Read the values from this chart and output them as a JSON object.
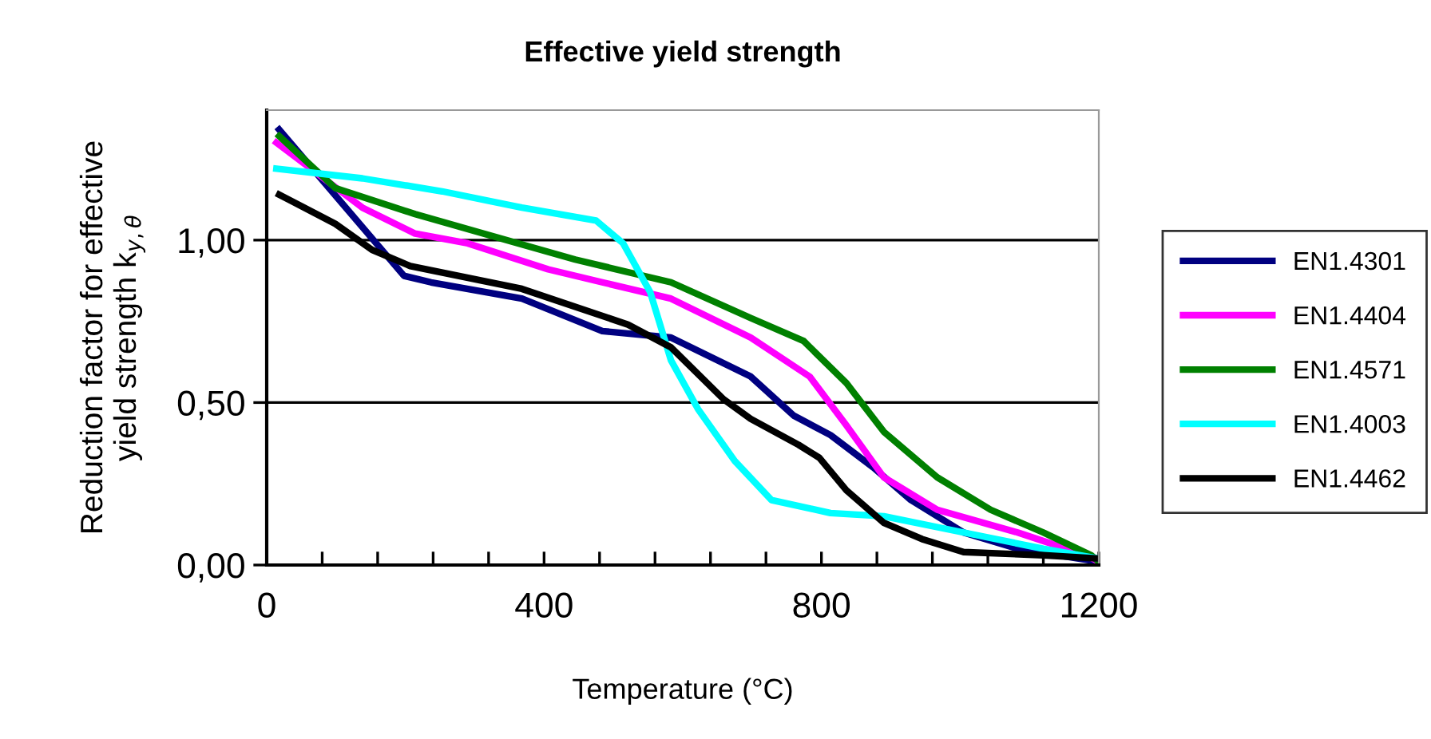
{
  "chart_data": {
    "type": "line",
    "title": "Effective yield strength",
    "xlabel": "Temperature (°C)",
    "ylabel": "Reduction factor for effective\nyield strength k$_{y,θ}$",
    "xlim": [
      0,
      1200
    ],
    "ylim": [
      0,
      1.4
    ],
    "xticks": [
      0,
      {
        "value": 80,
        "label": null
      },
      {
        "value": 160,
        "label": null
      },
      {
        "value": 240,
        "label": null
      },
      {
        "value": 320,
        "label": null
      },
      400,
      {
        "value": 480,
        "label": null
      },
      {
        "value": 560,
        "label": null
      },
      {
        "value": 640,
        "label": null
      },
      {
        "value": 720,
        "label": null
      },
      800,
      {
        "value": 880,
        "label": null
      },
      {
        "value": 960,
        "label": null
      },
      {
        "value": 1040,
        "label": null
      },
      {
        "value": 1120,
        "label": null
      },
      1200
    ],
    "yticks": [
      {
        "value": 0,
        "label": "0,00"
      },
      {
        "value": 0.5,
        "label": "0,50"
      },
      {
        "value": 1,
        "label": "1,00"
      }
    ],
    "grid": "y",
    "legend": "right",
    "marker": "none",
    "line_style": "solid",
    "series": [
      {
        "name": "EN1.4301",
        "color": "#000080",
        "x": [
          18,
          198,
          237,
          368,
          484,
          583,
          698,
          760,
          813,
          875,
          929,
          1005,
          1083,
          1200
        ],
        "values": [
          1.34,
          0.89,
          0.87,
          0.82,
          0.72,
          0.7,
          0.58,
          0.46,
          0.4,
          0.3,
          0.2,
          0.1,
          0.05,
          0.01
        ]
      },
      {
        "name": "EN1.4404",
        "color": "#ff00ff",
        "x": [
          14,
          138,
          214,
          290,
          406,
          484,
          583,
          698,
          783,
          836,
          890,
          967,
          1083,
          1182,
          1200
        ],
        "values": [
          1.3,
          1.1,
          1.02,
          0.99,
          0.91,
          0.87,
          0.82,
          0.7,
          0.58,
          0.43,
          0.27,
          0.17,
          0.1,
          0.03,
          0.01
        ]
      },
      {
        "name": "EN1.4571",
        "color": "#008000",
        "x": [
          18,
          99,
          214,
          313,
          445,
          583,
          698,
          774,
          836,
          890,
          967,
          1044,
          1120,
          1189,
          1200
        ],
        "values": [
          1.32,
          1.16,
          1.08,
          1.02,
          0.94,
          0.87,
          0.76,
          0.69,
          0.56,
          0.41,
          0.27,
          0.17,
          0.1,
          0.03,
          0.01
        ]
      },
      {
        "name": "EN1.4003",
        "color": "#00ffff",
        "x": [
          14,
          138,
          253,
          368,
          475,
          514,
          553,
          583,
          622,
          675,
          728,
          813,
          890,
          1005,
          1120,
          1200
        ],
        "values": [
          1.22,
          1.19,
          1.15,
          1.1,
          1.06,
          0.99,
          0.84,
          0.63,
          0.48,
          0.32,
          0.2,
          0.16,
          0.15,
          0.1,
          0.05,
          0.02
        ]
      },
      {
        "name": "EN1.4462",
        "color": "#000000",
        "x": [
          18,
          99,
          152,
          207,
          368,
          521,
          583,
          659,
          698,
          767,
          797,
          836,
          890,
          945,
          1005,
          1120,
          1200
        ],
        "values": [
          1.14,
          1.05,
          0.97,
          0.92,
          0.85,
          0.74,
          0.67,
          0.51,
          0.45,
          0.37,
          0.33,
          0.23,
          0.13,
          0.08,
          0.04,
          0.03,
          0.02
        ]
      }
    ]
  }
}
